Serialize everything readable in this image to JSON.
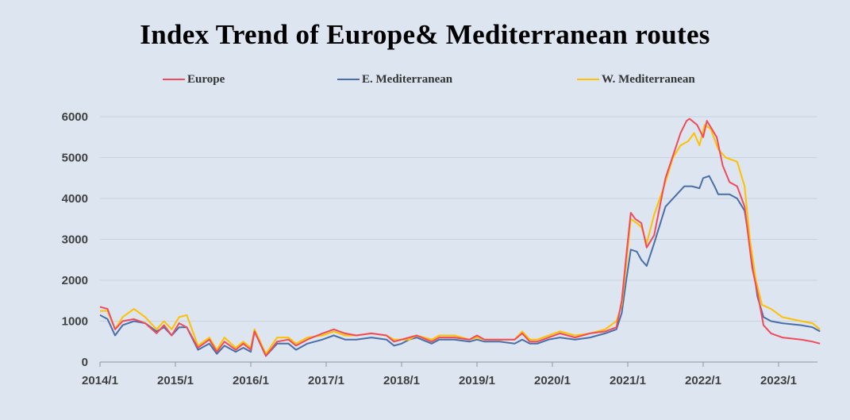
{
  "chart_data": {
    "type": "line",
    "title": "Index Trend of Europe& Mediterranean routes",
    "xlabel": "",
    "ylabel": "",
    "ylim": [
      0,
      6000
    ],
    "yticks": [
      "0",
      "1000",
      "2000",
      "3000",
      "4000",
      "5000",
      "6000"
    ],
    "xticks": [
      "2014/1",
      "2015/1",
      "2016/1",
      "2017/1",
      "2018/1",
      "2019/1",
      "2020/1",
      "2021/1",
      "2022/1",
      "2023/1"
    ],
    "x_start": "2014/1",
    "grid": true,
    "legend_position": "top",
    "series": [
      {
        "name": "Europe",
        "color": "#f04b5a",
        "points": [
          [
            2014.0,
            1350
          ],
          [
            2014.1,
            1300
          ],
          [
            2014.2,
            800
          ],
          [
            2014.3,
            1000
          ],
          [
            2014.45,
            1050
          ],
          [
            2014.6,
            950
          ],
          [
            2014.75,
            700
          ],
          [
            2014.85,
            900
          ],
          [
            2014.95,
            650
          ],
          [
            2015.05,
            950
          ],
          [
            2015.15,
            850
          ],
          [
            2015.3,
            350
          ],
          [
            2015.45,
            550
          ],
          [
            2015.55,
            250
          ],
          [
            2015.65,
            500
          ],
          [
            2015.8,
            300
          ],
          [
            2015.9,
            450
          ],
          [
            2016.0,
            300
          ],
          [
            2016.05,
            750
          ],
          [
            2016.2,
            150
          ],
          [
            2016.35,
            500
          ],
          [
            2016.5,
            550
          ],
          [
            2016.6,
            400
          ],
          [
            2016.75,
            550
          ],
          [
            2016.95,
            700
          ],
          [
            2017.1,
            800
          ],
          [
            2017.25,
            700
          ],
          [
            2017.4,
            650
          ],
          [
            2017.6,
            700
          ],
          [
            2017.8,
            650
          ],
          [
            2017.9,
            500
          ],
          [
            2018.0,
            550
          ],
          [
            2018.1,
            600
          ],
          [
            2018.2,
            650
          ],
          [
            2018.4,
            500
          ],
          [
            2018.5,
            600
          ],
          [
            2018.7,
            600
          ],
          [
            2018.9,
            550
          ],
          [
            2019.0,
            650
          ],
          [
            2019.1,
            550
          ],
          [
            2019.3,
            550
          ],
          [
            2019.5,
            550
          ],
          [
            2019.6,
            700
          ],
          [
            2019.7,
            500
          ],
          [
            2019.8,
            500
          ],
          [
            2019.95,
            600
          ],
          [
            2020.1,
            700
          ],
          [
            2020.3,
            600
          ],
          [
            2020.5,
            700
          ],
          [
            2020.7,
            750
          ],
          [
            2020.85,
            850
          ],
          [
            2020.92,
            1500
          ],
          [
            2020.98,
            2600
          ],
          [
            2021.04,
            3650
          ],
          [
            2021.1,
            3500
          ],
          [
            2021.18,
            3400
          ],
          [
            2021.25,
            2800
          ],
          [
            2021.35,
            3100
          ],
          [
            2021.5,
            4500
          ],
          [
            2021.7,
            5600
          ],
          [
            2021.78,
            5900
          ],
          [
            2021.82,
            5950
          ],
          [
            2021.92,
            5800
          ],
          [
            2022.0,
            5500
          ],
          [
            2022.05,
            5900
          ],
          [
            2022.18,
            5500
          ],
          [
            2022.26,
            4800
          ],
          [
            2022.35,
            4400
          ],
          [
            2022.45,
            4300
          ],
          [
            2022.55,
            3800
          ],
          [
            2022.65,
            2300
          ],
          [
            2022.72,
            1700
          ],
          [
            2022.8,
            900
          ],
          [
            2022.9,
            700
          ],
          [
            2023.05,
            600
          ],
          [
            2023.3,
            550
          ],
          [
            2023.45,
            500
          ],
          [
            2023.55,
            450
          ]
        ]
      },
      {
        "name": "E. Mediterranean",
        "color": "#4a6ea8",
        "points": [
          [
            2014.0,
            1150
          ],
          [
            2014.1,
            1050
          ],
          [
            2014.2,
            650
          ],
          [
            2014.3,
            900
          ],
          [
            2014.45,
            1000
          ],
          [
            2014.6,
            950
          ],
          [
            2014.75,
            750
          ],
          [
            2014.85,
            850
          ],
          [
            2014.95,
            650
          ],
          [
            2015.05,
            850
          ],
          [
            2015.15,
            850
          ],
          [
            2015.3,
            300
          ],
          [
            2015.45,
            450
          ],
          [
            2015.55,
            200
          ],
          [
            2015.65,
            400
          ],
          [
            2015.8,
            250
          ],
          [
            2015.9,
            350
          ],
          [
            2016.0,
            250
          ],
          [
            2016.05,
            750
          ],
          [
            2016.2,
            150
          ],
          [
            2016.35,
            450
          ],
          [
            2016.5,
            450
          ],
          [
            2016.6,
            300
          ],
          [
            2016.75,
            450
          ],
          [
            2016.95,
            550
          ],
          [
            2017.1,
            650
          ],
          [
            2017.25,
            550
          ],
          [
            2017.4,
            550
          ],
          [
            2017.6,
            600
          ],
          [
            2017.8,
            550
          ],
          [
            2017.9,
            400
          ],
          [
            2018.0,
            450
          ],
          [
            2018.1,
            550
          ],
          [
            2018.2,
            600
          ],
          [
            2018.4,
            450
          ],
          [
            2018.5,
            550
          ],
          [
            2018.7,
            550
          ],
          [
            2018.9,
            500
          ],
          [
            2019.0,
            550
          ],
          [
            2019.1,
            500
          ],
          [
            2019.3,
            500
          ],
          [
            2019.5,
            450
          ],
          [
            2019.6,
            550
          ],
          [
            2019.7,
            450
          ],
          [
            2019.8,
            450
          ],
          [
            2019.95,
            550
          ],
          [
            2020.1,
            600
          ],
          [
            2020.3,
            550
          ],
          [
            2020.5,
            600
          ],
          [
            2020.7,
            700
          ],
          [
            2020.85,
            800
          ],
          [
            2020.92,
            1200
          ],
          [
            2020.98,
            2000
          ],
          [
            2021.04,
            2750
          ],
          [
            2021.12,
            2700
          ],
          [
            2021.18,
            2500
          ],
          [
            2021.25,
            2350
          ],
          [
            2021.35,
            2900
          ],
          [
            2021.5,
            3800
          ],
          [
            2021.65,
            4100
          ],
          [
            2021.75,
            4300
          ],
          [
            2021.85,
            4300
          ],
          [
            2021.95,
            4250
          ],
          [
            2022.0,
            4500
          ],
          [
            2022.08,
            4550
          ],
          [
            2022.15,
            4300
          ],
          [
            2022.2,
            4100
          ],
          [
            2022.35,
            4100
          ],
          [
            2022.45,
            4000
          ],
          [
            2022.55,
            3700
          ],
          [
            2022.65,
            2500
          ],
          [
            2022.72,
            1600
          ],
          [
            2022.8,
            1100
          ],
          [
            2022.9,
            1000
          ],
          [
            2023.05,
            950
          ],
          [
            2023.3,
            900
          ],
          [
            2023.45,
            850
          ],
          [
            2023.55,
            750
          ]
        ]
      },
      {
        "name": "W. Mediterranean",
        "color": "#ffc000",
        "points": [
          [
            2014.0,
            1250
          ],
          [
            2014.1,
            1250
          ],
          [
            2014.2,
            800
          ],
          [
            2014.3,
            1100
          ],
          [
            2014.45,
            1300
          ],
          [
            2014.6,
            1100
          ],
          [
            2014.75,
            800
          ],
          [
            2014.85,
            1000
          ],
          [
            2014.95,
            800
          ],
          [
            2015.05,
            1100
          ],
          [
            2015.15,
            1150
          ],
          [
            2015.3,
            400
          ],
          [
            2015.45,
            600
          ],
          [
            2015.55,
            300
          ],
          [
            2015.65,
            600
          ],
          [
            2015.8,
            350
          ],
          [
            2015.9,
            500
          ],
          [
            2016.0,
            350
          ],
          [
            2016.05,
            800
          ],
          [
            2016.2,
            200
          ],
          [
            2016.35,
            600
          ],
          [
            2016.5,
            600
          ],
          [
            2016.6,
            450
          ],
          [
            2016.75,
            600
          ],
          [
            2016.95,
            650
          ],
          [
            2017.1,
            750
          ],
          [
            2017.25,
            650
          ],
          [
            2017.4,
            650
          ],
          [
            2017.6,
            700
          ],
          [
            2017.8,
            650
          ],
          [
            2017.9,
            550
          ],
          [
            2018.0,
            550
          ],
          [
            2018.1,
            550
          ],
          [
            2018.2,
            650
          ],
          [
            2018.4,
            550
          ],
          [
            2018.5,
            650
          ],
          [
            2018.7,
            650
          ],
          [
            2018.9,
            550
          ],
          [
            2019.0,
            600
          ],
          [
            2019.1,
            550
          ],
          [
            2019.3,
            550
          ],
          [
            2019.5,
            550
          ],
          [
            2019.6,
            750
          ],
          [
            2019.7,
            550
          ],
          [
            2019.8,
            550
          ],
          [
            2019.95,
            650
          ],
          [
            2020.1,
            750
          ],
          [
            2020.3,
            650
          ],
          [
            2020.5,
            700
          ],
          [
            2020.7,
            800
          ],
          [
            2020.85,
            1000
          ],
          [
            2020.92,
            1400
          ],
          [
            2020.98,
            2400
          ],
          [
            2021.04,
            3500
          ],
          [
            2021.12,
            3400
          ],
          [
            2021.18,
            3300
          ],
          [
            2021.25,
            2900
          ],
          [
            2021.35,
            3600
          ],
          [
            2021.5,
            4400
          ],
          [
            2021.6,
            5000
          ],
          [
            2021.7,
            5300
          ],
          [
            2021.8,
            5400
          ],
          [
            2021.88,
            5600
          ],
          [
            2021.95,
            5300
          ],
          [
            2022.02,
            5800
          ],
          [
            2022.1,
            5700
          ],
          [
            2022.2,
            5200
          ],
          [
            2022.3,
            5000
          ],
          [
            2022.45,
            4900
          ],
          [
            2022.55,
            4300
          ],
          [
            2022.62,
            3000
          ],
          [
            2022.7,
            2000
          ],
          [
            2022.78,
            1400
          ],
          [
            2022.9,
            1300
          ],
          [
            2023.05,
            1100
          ],
          [
            2023.3,
            1000
          ],
          [
            2023.45,
            950
          ],
          [
            2023.55,
            800
          ]
        ]
      }
    ]
  }
}
